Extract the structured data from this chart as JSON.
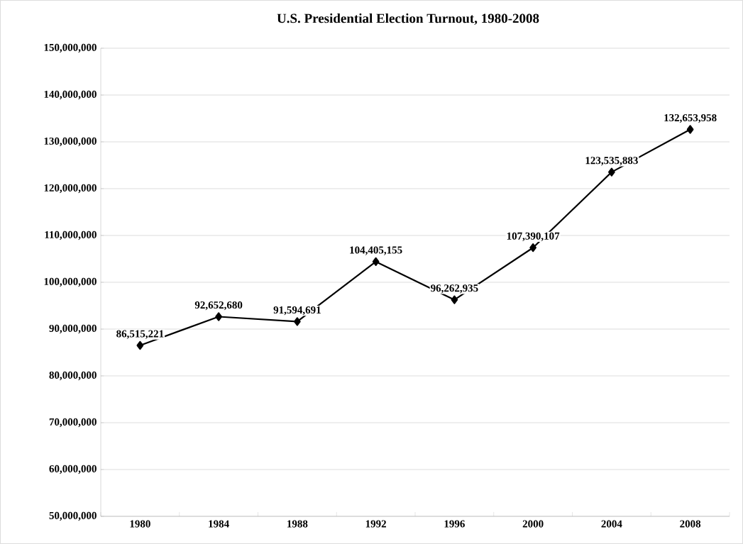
{
  "chart_data": {
    "type": "line",
    "title": "U.S. Presidential Election Turnout, 1980-2008",
    "categories": [
      "1980",
      "1984",
      "1988",
      "1992",
      "1996",
      "2000",
      "2004",
      "2008"
    ],
    "values": [
      86515221,
      92652680,
      91594691,
      104405155,
      96262935,
      107390107,
      123535883,
      132653958
    ],
    "value_labels": [
      "86,515,221",
      "92,652,680",
      "91,594,691",
      "104,405,155",
      "96,262,935",
      "107,390,107",
      "123,535,883",
      "132,653,958"
    ],
    "color": "#000000",
    "marker": "diamond",
    "line_style": "solid",
    "grid": "y",
    "ylim": [
      50000000,
      150000000
    ],
    "yticks": [
      {
        "value": 50000000,
        "label": "50,000,000"
      },
      {
        "value": 60000000,
        "label": "60,000,000"
      },
      {
        "value": 70000000,
        "label": "70,000,000"
      },
      {
        "value": 80000000,
        "label": "80,000,000"
      },
      {
        "value": 90000000,
        "label": "90,000,000"
      },
      {
        "value": 100000000,
        "label": "100,000,000"
      },
      {
        "value": 110000000,
        "label": "110,000,000"
      },
      {
        "value": 120000000,
        "label": "120,000,000"
      },
      {
        "value": 130000000,
        "label": "130,000,000"
      },
      {
        "value": 140000000,
        "label": "140,000,000"
      },
      {
        "value": 150000000,
        "label": "150,000,000"
      }
    ]
  }
}
